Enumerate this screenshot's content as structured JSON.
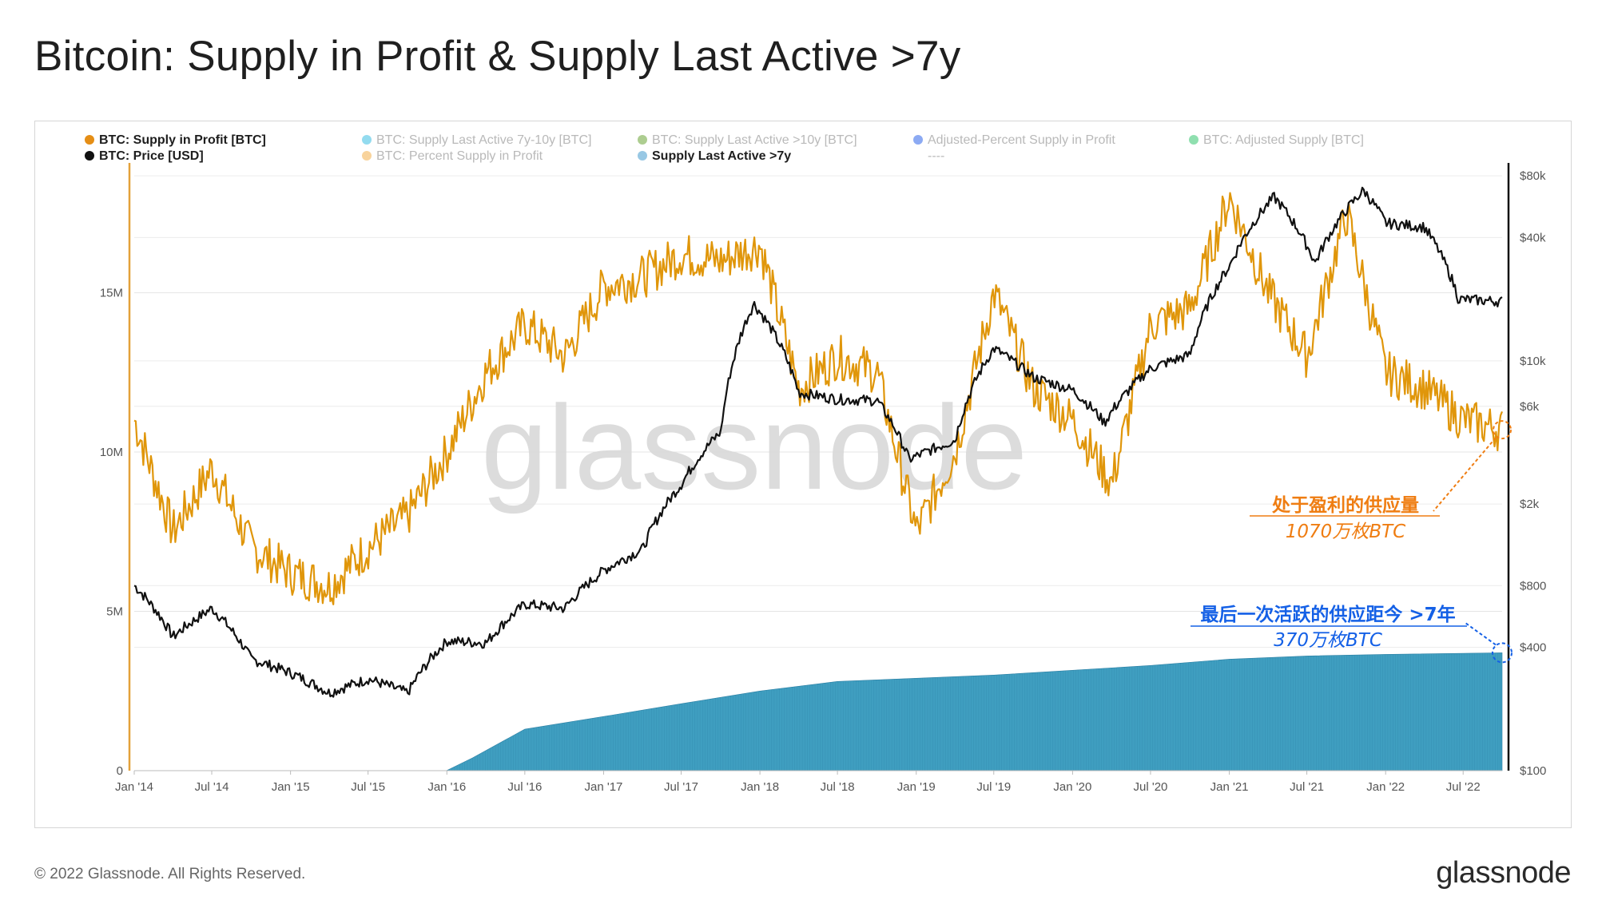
{
  "title": "Bitcoin: Supply in Profit & Supply Last Active >7y",
  "footer": "© 2022 Glassnode. All Rights Reserved.",
  "brand": "glassnode",
  "watermark": "glassnode",
  "colors": {
    "supply_in_profit": "#e0960a",
    "price": "#111111",
    "supply_7y": "#3f9ec0",
    "ann_orange": "#ef7d12",
    "ann_blue": "#1460e6"
  },
  "legend": [
    {
      "label": "BTC: Supply in Profit [BTC]",
      "color": "#e58e15",
      "active": true
    },
    {
      "label": "BTC: Supply Last Active 7y-10y [BTC]",
      "color": "#27b7e0",
      "active": false
    },
    {
      "label": "BTC: Supply Last Active >10y [BTC]",
      "color": "#5b9b22",
      "active": false
    },
    {
      "label": "Adjusted-Percent Supply in Profit",
      "color": "#1a55e8",
      "active": false
    },
    {
      "label": "BTC: Adjusted Supply [BTC]",
      "color": "#1fbf5f",
      "active": false
    },
    {
      "label": "BTC: Price [USD]",
      "color": "#111111",
      "active": true
    },
    {
      "label": "BTC: Percent Supply in Profit",
      "color": "#f2a83a",
      "active": false
    },
    {
      "label": "Supply Last Active >7y",
      "color": "#98c8e4",
      "active": true
    },
    {
      "label": "----",
      "color": null,
      "active": false
    }
  ],
  "annotations": {
    "profit": {
      "line1": "处于盈利的供应量",
      "line2": "1070万枚BTC"
    },
    "active7y": {
      "line1": "最后一次活跃的供应距今 >7年",
      "line2": "370万枚BTC"
    }
  },
  "chart_data": {
    "type": "line",
    "x_range": [
      "2014-01-01",
      "2022-09-30"
    ],
    "x_ticks": [
      "Jan '14",
      "Jul '14",
      "Jan '15",
      "Jul '15",
      "Jan '16",
      "Jul '16",
      "Jan '17",
      "Jul '17",
      "Jan '18",
      "Jul '18",
      "Jan '19",
      "Jul '19",
      "Jan '20",
      "Jul '20",
      "Jan '21",
      "Jul '21",
      "Jan '22",
      "Jul '22"
    ],
    "y_left": {
      "ticks": [
        "0",
        "5M",
        "10M",
        "15M"
      ],
      "range": [
        0,
        19000000
      ]
    },
    "y_right": {
      "scale": "log",
      "ticks": [
        "$100",
        "$400",
        "$800",
        "$2k",
        "$6k",
        "$10k",
        "$40k",
        "$80k"
      ],
      "range": [
        100,
        90000
      ]
    },
    "series": [
      {
        "name": "BTC: Supply in Profit [BTC]",
        "axis": "left",
        "x": [
          "2014-01-01",
          "2014-04-01",
          "2014-07-01",
          "2014-10-01",
          "2015-01-01",
          "2015-04-01",
          "2015-07-01",
          "2015-10-01",
          "2016-01-01",
          "2016-04-01",
          "2016-07-01",
          "2016-10-01",
          "2017-01-01",
          "2017-04-01",
          "2017-07-01",
          "2017-10-01",
          "2018-01-01",
          "2018-04-01",
          "2018-07-01",
          "2018-10-01",
          "2019-01-01",
          "2019-04-01",
          "2019-07-01",
          "2019-10-01",
          "2020-01-01",
          "2020-04-01",
          "2020-07-01",
          "2020-10-01",
          "2021-01-01",
          "2021-04-01",
          "2021-07-01",
          "2021-10-01",
          "2022-01-01",
          "2022-04-01",
          "2022-07-01",
          "2022-09-30"
        ],
        "y": [
          11000000,
          7500000,
          9500000,
          7000000,
          6200000,
          5800000,
          7000000,
          8000000,
          10000000,
          12500000,
          14000000,
          13000000,
          15200000,
          15500000,
          16200000,
          16000000,
          16500000,
          12000000,
          13000000,
          12500000,
          7500000,
          10000000,
          15000000,
          12000000,
          11000000,
          9000000,
          14000000,
          14500000,
          18000000,
          15000000,
          13000000,
          17500000,
          12500000,
          12000000,
          11000000,
          10700000
        ]
      },
      {
        "name": "BTC: Price [USD]",
        "axis": "right",
        "x": [
          "2014-01-01",
          "2014-04-01",
          "2014-07-01",
          "2014-10-01",
          "2015-01-01",
          "2015-04-01",
          "2015-07-01",
          "2015-10-01",
          "2016-01-01",
          "2016-04-01",
          "2016-07-01",
          "2016-10-01",
          "2017-01-01",
          "2017-04-01",
          "2017-07-01",
          "2017-10-01",
          "2017-12-17",
          "2018-04-01",
          "2018-07-01",
          "2018-10-01",
          "2018-12-15",
          "2019-04-01",
          "2019-07-01",
          "2019-10-01",
          "2020-01-01",
          "2020-03-15",
          "2020-07-01",
          "2020-10-01",
          "2021-01-01",
          "2021-04-15",
          "2021-07-20",
          "2021-11-10",
          "2022-01-01",
          "2022-04-01",
          "2022-06-20",
          "2022-09-30"
        ],
        "y": [
          800,
          450,
          620,
          350,
          300,
          240,
          280,
          240,
          430,
          420,
          650,
          620,
          950,
          1200,
          2500,
          4500,
          19000,
          7000,
          6500,
          6400,
          3300,
          4100,
          11500,
          8300,
          7200,
          5000,
          9200,
          10700,
          29000,
          63000,
          30000,
          68000,
          47000,
          45000,
          20000,
          19500
        ]
      },
      {
        "name": "Supply Last Active >7y",
        "axis": "left",
        "x": [
          "2014-01-01",
          "2015-12-31",
          "2016-03-01",
          "2016-07-01",
          "2017-01-01",
          "2017-07-01",
          "2018-01-01",
          "2018-07-01",
          "2019-01-01",
          "2019-07-01",
          "2020-01-01",
          "2020-07-01",
          "2021-01-01",
          "2021-07-01",
          "2022-01-01",
          "2022-09-30"
        ],
        "y": [
          0,
          0,
          400000,
          1300000,
          1700000,
          2100000,
          2500000,
          2800000,
          2900000,
          3000000,
          3150000,
          3300000,
          3500000,
          3600000,
          3650000,
          3700000
        ]
      }
    ]
  }
}
